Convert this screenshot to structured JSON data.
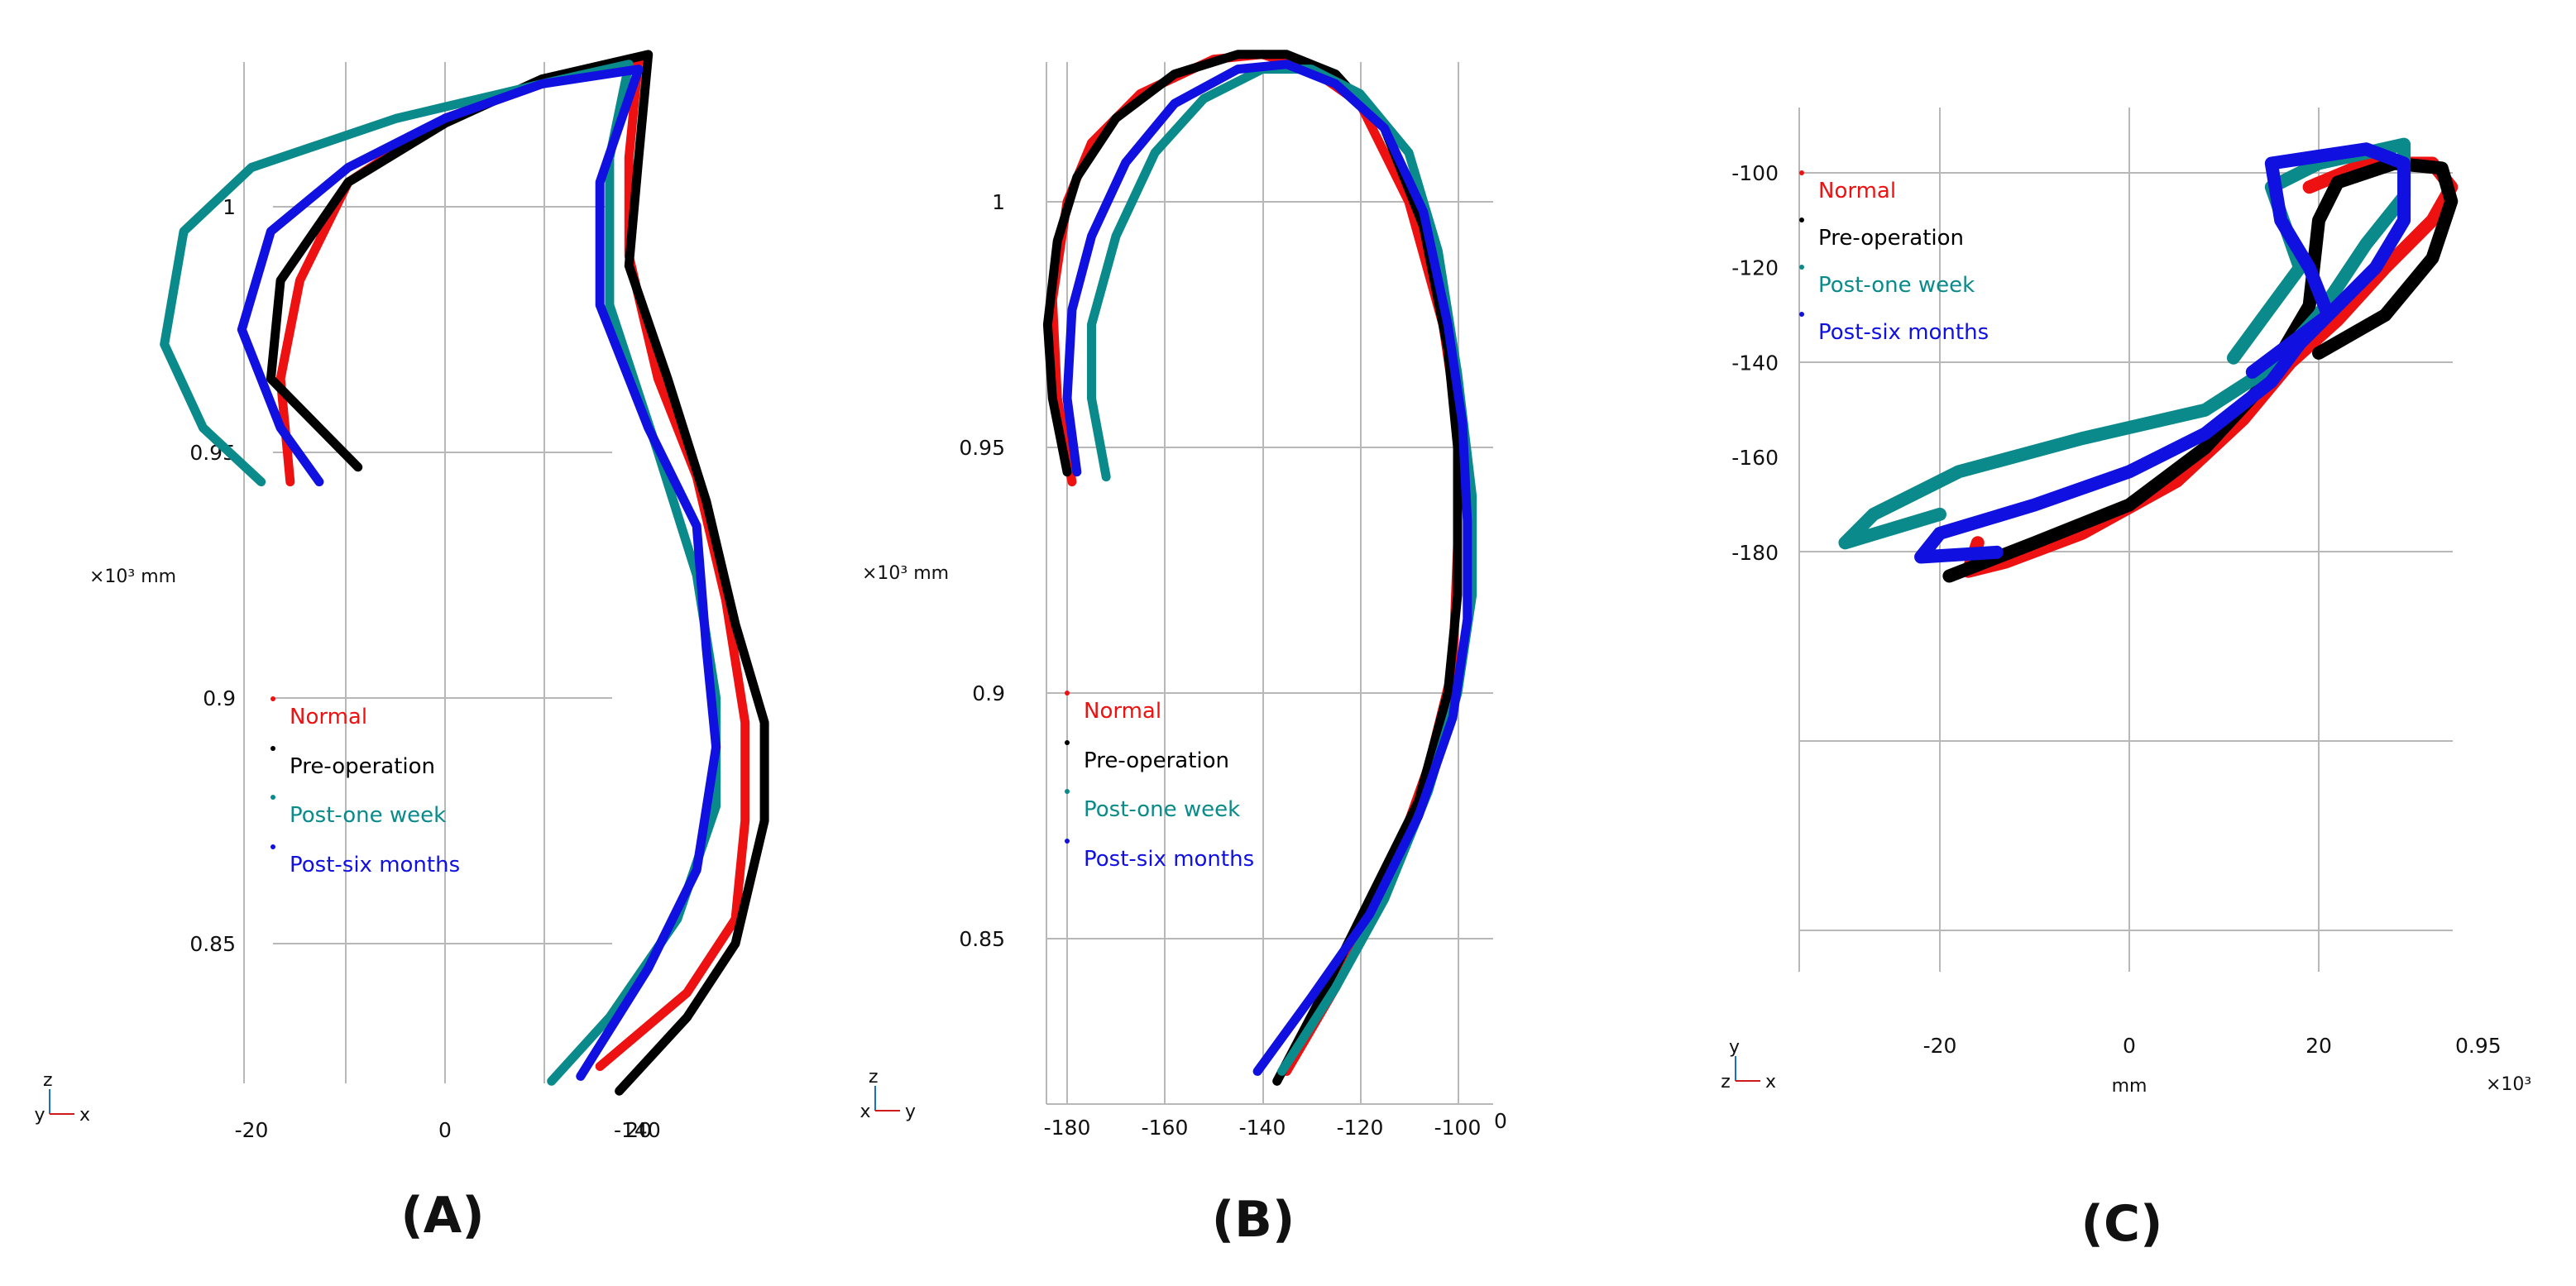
{
  "colors": {
    "Normal": "#ee1111",
    "Pre-operation": "#000000",
    "Post-one week": "#0a8a8a",
    "Post-six months": "#1010e0"
  },
  "chart_data": [
    {
      "type": "line",
      "panel_label": "(A)",
      "view": "x-z",
      "xlabel": "",
      "xticks": [
        "-20",
        "0",
        "20"
      ],
      "xtick_values": [
        -20,
        0,
        20
      ],
      "x_extra_label": "-140",
      "yticks": [
        "1",
        "0.95",
        "0.9",
        "0.85"
      ],
      "ytick_values": [
        1.0,
        0.95,
        0.9,
        0.85
      ],
      "yunit": "×10³ mm",
      "triad": {
        "up": "z",
        "right": "x",
        "left": "y"
      },
      "legend": [
        "Normal",
        "Pre-operation",
        "Post-one week",
        "Post-six months"
      ],
      "series": [
        {
          "name": "Normal",
          "points": [
            [
              -16,
              0.944
            ],
            [
              -17,
              0.965
            ],
            [
              -15,
              0.985
            ],
            [
              -10,
              1.005
            ],
            [
              0,
              1.018
            ],
            [
              10,
              1.025
            ],
            [
              20,
              1.03
            ],
            [
              19,
              1.01
            ],
            [
              19,
              0.99
            ],
            [
              22,
              0.965
            ],
            [
              26,
              0.945
            ],
            [
              29,
              0.92
            ],
            [
              31,
              0.895
            ],
            [
              31,
              0.875
            ],
            [
              30,
              0.855
            ],
            [
              25,
              0.84
            ],
            [
              16,
              0.825
            ]
          ]
        },
        {
          "name": "Pre-operation",
          "points": [
            [
              -9,
              0.947
            ],
            [
              -13,
              0.955
            ],
            [
              -18,
              0.965
            ],
            [
              -17,
              0.985
            ],
            [
              -10,
              1.005
            ],
            [
              0,
              1.017
            ],
            [
              10,
              1.026
            ],
            [
              21,
              1.031
            ],
            [
              20,
              1.01
            ],
            [
              19,
              0.988
            ],
            [
              23,
              0.965
            ],
            [
              27,
              0.94
            ],
            [
              30,
              0.915
            ],
            [
              33,
              0.895
            ],
            [
              33,
              0.875
            ],
            [
              30,
              0.85
            ],
            [
              25,
              0.835
            ],
            [
              18,
              0.82
            ]
          ]
        },
        {
          "name": "Post-one week",
          "points": [
            [
              -19,
              0.944
            ],
            [
              -25,
              0.955
            ],
            [
              -29,
              0.972
            ],
            [
              -27,
              0.995
            ],
            [
              -20,
              1.008
            ],
            [
              -5,
              1.018
            ],
            [
              10,
              1.025
            ],
            [
              19,
              1.029
            ],
            [
              17,
              1.01
            ],
            [
              17,
              0.98
            ],
            [
              22,
              0.95
            ],
            [
              26,
              0.925
            ],
            [
              28,
              0.9
            ],
            [
              28,
              0.878
            ],
            [
              24,
              0.855
            ],
            [
              17,
              0.835
            ],
            [
              11,
              0.822
            ]
          ]
        },
        {
          "name": "Post-six months",
          "points": [
            [
              -13,
              0.944
            ],
            [
              -17,
              0.955
            ],
            [
              -21,
              0.975
            ],
            [
              -18,
              0.995
            ],
            [
              -10,
              1.008
            ],
            [
              0,
              1.018
            ],
            [
              10,
              1.025
            ],
            [
              20,
              1.028
            ],
            [
              16,
              1.005
            ],
            [
              16,
              0.98
            ],
            [
              21,
              0.955
            ],
            [
              26,
              0.935
            ],
            [
              27,
              0.91
            ],
            [
              28,
              0.89
            ],
            [
              26,
              0.865
            ],
            [
              21,
              0.845
            ],
            [
              14,
              0.823
            ]
          ]
        }
      ]
    },
    {
      "type": "line",
      "panel_label": "(B)",
      "view": "y-z",
      "xlabel": "",
      "xticks": [
        "-180",
        "-160",
        "-140",
        "-120",
        "-100"
      ],
      "xtick_values": [
        -180,
        -160,
        -140,
        -120,
        -100
      ],
      "x_extra_label": "0",
      "yticks": [
        "1",
        "0.95",
        "0.9",
        "0.85"
      ],
      "ytick_values": [
        1.0,
        0.95,
        0.9,
        0.85
      ],
      "yunit": "×10³ mm",
      "triad": {
        "up": "z",
        "right": "y",
        "left": "x"
      },
      "legend": [
        "Normal",
        "Pre-operation",
        "Post-one week",
        "Post-six months"
      ],
      "series": [
        {
          "name": "Normal",
          "points": [
            [
              -179,
              0.943
            ],
            [
              -182,
              0.96
            ],
            [
              -183,
              0.98
            ],
            [
              -180,
              1.0
            ],
            [
              -175,
              1.012
            ],
            [
              -165,
              1.022
            ],
            [
              -150,
              1.029
            ],
            [
              -140,
              1.03
            ],
            [
              -130,
              1.027
            ],
            [
              -120,
              1.02
            ],
            [
              -110,
              1.0
            ],
            [
              -103,
              0.975
            ],
            [
              -100,
              0.955
            ],
            [
              -100,
              0.93
            ],
            [
              -101,
              0.905
            ],
            [
              -106,
              0.885
            ],
            [
              -115,
              0.86
            ],
            [
              -125,
              0.84
            ],
            [
              -135,
              0.823
            ]
          ]
        },
        {
          "name": "Pre-operation",
          "points": [
            [
              -180,
              0.945
            ],
            [
              -183,
              0.96
            ],
            [
              -184,
              0.975
            ],
            [
              -182,
              0.992
            ],
            [
              -178,
              1.005
            ],
            [
              -170,
              1.017
            ],
            [
              -158,
              1.026
            ],
            [
              -145,
              1.03
            ],
            [
              -135,
              1.03
            ],
            [
              -125,
              1.026
            ],
            [
              -115,
              1.015
            ],
            [
              -107,
              0.995
            ],
            [
              -102,
              0.97
            ],
            [
              -100,
              0.95
            ],
            [
              -100,
              0.92
            ],
            [
              -102,
              0.9
            ],
            [
              -108,
              0.878
            ],
            [
              -118,
              0.858
            ],
            [
              -128,
              0.838
            ],
            [
              -137,
              0.821
            ]
          ]
        },
        {
          "name": "Post-one week",
          "points": [
            [
              -172,
              0.944
            ],
            [
              -175,
              0.96
            ],
            [
              -175,
              0.975
            ],
            [
              -170,
              0.993
            ],
            [
              -162,
              1.01
            ],
            [
              -152,
              1.021
            ],
            [
              -140,
              1.027
            ],
            [
              -130,
              1.027
            ],
            [
              -120,
              1.022
            ],
            [
              -110,
              1.01
            ],
            [
              -104,
              0.99
            ],
            [
              -100,
              0.965
            ],
            [
              -97,
              0.94
            ],
            [
              -97,
              0.92
            ],
            [
              -100,
              0.9
            ],
            [
              -106,
              0.88
            ],
            [
              -115,
              0.858
            ],
            [
              -125,
              0.84
            ],
            [
              -136,
              0.823
            ]
          ]
        },
        {
          "name": "Post-six months",
          "points": [
            [
              -178,
              0.945
            ],
            [
              -180,
              0.96
            ],
            [
              -179,
              0.978
            ],
            [
              -175,
              0.993
            ],
            [
              -168,
              1.008
            ],
            [
              -158,
              1.02
            ],
            [
              -145,
              1.027
            ],
            [
              -135,
              1.028
            ],
            [
              -125,
              1.024
            ],
            [
              -115,
              1.015
            ],
            [
              -107,
              0.998
            ],
            [
              -102,
              0.975
            ],
            [
              -99,
              0.955
            ],
            [
              -98,
              0.935
            ],
            [
              -98,
              0.915
            ],
            [
              -101,
              0.895
            ],
            [
              -108,
              0.875
            ],
            [
              -118,
              0.855
            ],
            [
              -130,
              0.838
            ],
            [
              -141,
              0.823
            ]
          ]
        }
      ]
    },
    {
      "type": "line",
      "panel_label": "(C)",
      "view": "x-y",
      "xlabel": "mm",
      "xticks": [
        "-20",
        "0",
        "20"
      ],
      "xtick_values": [
        -20,
        0,
        20
      ],
      "x_extra_label": "0.95",
      "x_unit_corner": "×10³",
      "yticks": [
        "-100",
        "-120",
        "-140",
        "-160",
        "-180"
      ],
      "ytick_values": [
        -100,
        -120,
        -140,
        -160,
        -180
      ],
      "triad": {
        "up": "y",
        "right": "x",
        "left": "z"
      },
      "legend": [
        "Normal",
        "Pre-operation",
        "Post-one week",
        "Post-six months"
      ],
      "series": [
        {
          "name": "Normal",
          "points": [
            [
              -16,
              -178
            ],
            [
              -17,
              -184
            ],
            [
              -13,
              -182
            ],
            [
              -5,
              -176
            ],
            [
              5,
              -165
            ],
            [
              12,
              -152
            ],
            [
              17,
              -140
            ],
            [
              22,
              -131
            ],
            [
              27,
              -120
            ],
            [
              32,
              -110
            ],
            [
              34,
              -103
            ],
            [
              32,
              -98
            ],
            [
              25,
              -98
            ],
            [
              19,
              -103
            ]
          ]
        },
        {
          "name": "Pre-operation",
          "points": [
            [
              -19,
              -185
            ],
            [
              -10,
              -178
            ],
            [
              0,
              -170
            ],
            [
              8,
              -158
            ],
            [
              14,
              -145
            ],
            [
              19,
              -128
            ],
            [
              20,
              -110
            ],
            [
              22,
              -102
            ],
            [
              28,
              -98
            ],
            [
              33,
              -99
            ],
            [
              34,
              -106
            ],
            [
              32,
              -118
            ],
            [
              27,
              -130
            ],
            [
              20,
              -138
            ]
          ]
        },
        {
          "name": "Post-one week",
          "points": [
            [
              -20,
              -172
            ],
            [
              -30,
              -178
            ],
            [
              -27,
              -172
            ],
            [
              -18,
              -163
            ],
            [
              -5,
              -156
            ],
            [
              8,
              -150
            ],
            [
              15,
              -141
            ],
            [
              20,
              -130
            ],
            [
              25,
              -115
            ],
            [
              29,
              -105
            ],
            [
              29,
              -94
            ],
            [
              20,
              -98
            ],
            [
              15,
              -103
            ],
            [
              18,
              -120
            ],
            [
              11,
              -139
            ]
          ]
        },
        {
          "name": "Post-six months",
          "points": [
            [
              -14,
              -180
            ],
            [
              -22,
              -181
            ],
            [
              -20,
              -176
            ],
            [
              -10,
              -170
            ],
            [
              0,
              -163
            ],
            [
              8,
              -155
            ],
            [
              15,
              -144
            ],
            [
              18,
              -136
            ],
            [
              22,
              -128
            ],
            [
              26,
              -120
            ],
            [
              29,
              -110
            ],
            [
              29,
              -98
            ],
            [
              25,
              -95
            ],
            [
              15,
              -98
            ],
            [
              16,
              -110
            ],
            [
              19,
              -120
            ],
            [
              21,
              -130
            ],
            [
              13,
              -142
            ]
          ]
        }
      ]
    }
  ]
}
